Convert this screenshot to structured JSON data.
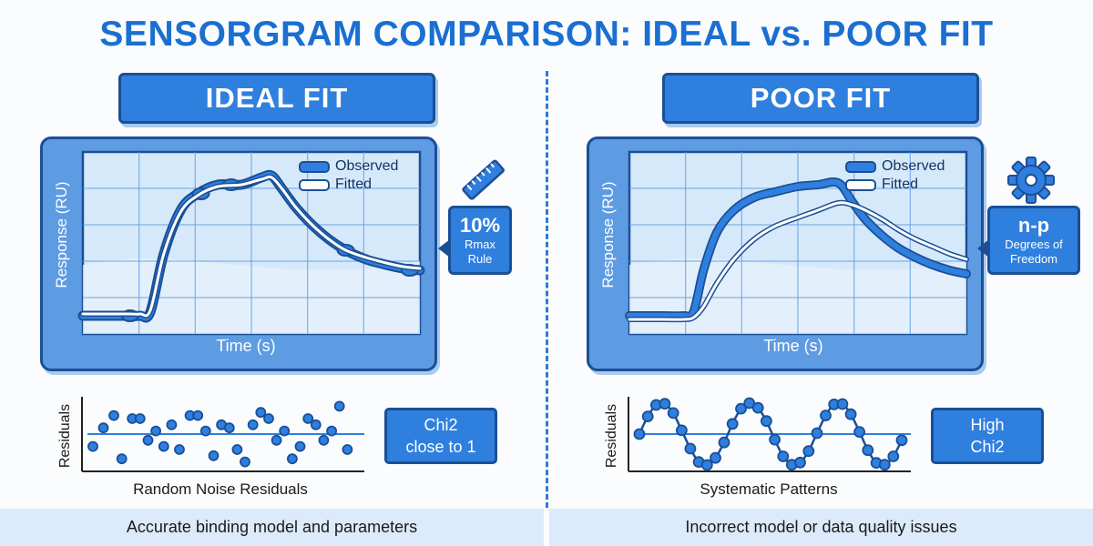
{
  "title": "SENSORGRAM COMPARISON: IDEAL vs. POOR FIT",
  "colors": {
    "accent": "#2f7fde",
    "dark": "#1b4f95",
    "plot_bg": "#d6e9fa",
    "frame": "#5d9be3",
    "footer_bg": "#dcebfb"
  },
  "ideal": {
    "header": "IDEAL FIT",
    "y_axis_label": "Response (RU)",
    "x_axis_label": "Time (s)",
    "legend": {
      "observed": "Observed",
      "fitted": "Fitted"
    },
    "icon": "ruler-icon",
    "callout": {
      "big": "10%",
      "line1": "Rmax",
      "line2": "Rule"
    },
    "residual_axis_label": "Residuals",
    "residual_caption": "Random Noise Residuals",
    "stat_line1": "Chi2",
    "stat_line2": "close to 1",
    "footer": "Accurate binding model and parameters"
  },
  "poor": {
    "header": "POOR FIT",
    "y_axis_label": "Response (RU)",
    "x_axis_label": "Time (s)",
    "legend": {
      "observed": "Observed",
      "fitted": "Fitted"
    },
    "icon": "gear-icon",
    "callout": {
      "big": "n-p",
      "line1": "Degrees of",
      "line2": "Freedom"
    },
    "residual_axis_label": "Residuals",
    "residual_caption": "Systematic Patterns",
    "stat_line1": "High",
    "stat_line2": "Chi2",
    "footer": "Incorrect model or data quality issues"
  },
  "chart_data": [
    {
      "type": "line",
      "title": "IDEAL FIT",
      "xlabel": "Time (s)",
      "ylabel": "Response (RU)",
      "xlim": [
        0,
        100
      ],
      "ylim": [
        0,
        100
      ],
      "grid": true,
      "legend": "top-right",
      "series": [
        {
          "name": "Observed",
          "x": [
            0,
            8,
            14,
            17,
            20,
            24,
            29,
            34,
            40,
            47,
            53,
            56,
            59,
            63,
            68,
            73,
            78,
            84,
            90,
            95,
            100
          ],
          "y": [
            10,
            10,
            10,
            10,
            12,
            44,
            68,
            77,
            82,
            82,
            86,
            87,
            80,
            70,
            60,
            52,
            46,
            41,
            38,
            36,
            35
          ]
        },
        {
          "name": "Fitted",
          "x": [
            0,
            8,
            14,
            17,
            20,
            24,
            29,
            34,
            40,
            47,
            53,
            56,
            59,
            63,
            68,
            73,
            78,
            84,
            90,
            95,
            100
          ],
          "y": [
            11,
            11,
            11,
            11,
            13,
            44,
            67,
            76,
            81,
            82,
            85,
            86,
            80,
            70,
            60,
            52,
            46,
            42,
            39,
            37,
            36
          ]
        }
      ]
    },
    {
      "type": "line",
      "title": "POOR FIT",
      "xlabel": "Time (s)",
      "ylabel": "Response (RU)",
      "xlim": [
        0,
        100
      ],
      "ylim": [
        0,
        100
      ],
      "grid": true,
      "legend": "top-right",
      "series": [
        {
          "name": "Observed",
          "x": [
            0,
            10,
            16,
            19,
            22,
            26,
            31,
            37,
            43,
            50,
            56,
            62,
            66,
            70,
            75,
            80,
            85,
            90,
            95,
            100
          ],
          "y": [
            10,
            10,
            10,
            12,
            35,
            56,
            68,
            75,
            78,
            81,
            82,
            83,
            73,
            63,
            54,
            47,
            42,
            38,
            35,
            33
          ]
        },
        {
          "name": "Fitted",
          "x": [
            0,
            10,
            16,
            19,
            22,
            26,
            31,
            37,
            43,
            50,
            56,
            62,
            66,
            70,
            75,
            80,
            85,
            90,
            95,
            100
          ],
          "y": [
            8,
            8,
            8,
            9,
            15,
            28,
            41,
            52,
            59,
            64,
            68,
            72,
            71,
            68,
            63,
            57,
            52,
            48,
            44,
            41
          ]
        }
      ]
    },
    {
      "type": "scatter",
      "title": "Random Noise Residuals",
      "ylabel": "Residuals",
      "ylim": [
        -1,
        1
      ],
      "series": [
        {
          "name": "Residuals",
          "x": [
            0,
            4,
            8,
            11,
            15,
            18,
            21,
            24,
            27,
            30,
            33,
            37,
            40,
            43,
            46,
            49,
            52,
            55,
            58,
            61,
            64,
            67,
            70,
            73,
            76,
            79,
            82,
            85,
            88,
            91,
            94,
            97
          ],
          "y": [
            -0.4,
            0.2,
            0.6,
            -0.8,
            0.5,
            0.5,
            -0.2,
            0.1,
            -0.4,
            0.3,
            -0.5,
            0.6,
            0.6,
            0.1,
            -0.7,
            0.3,
            0.2,
            -0.5,
            -0.9,
            0.3,
            0.7,
            0.5,
            -0.2,
            0.1,
            -0.8,
            -0.4,
            0.5,
            0.3,
            -0.2,
            0.1,
            0.9,
            -0.5
          ]
        }
      ]
    },
    {
      "type": "scatter",
      "title": "Systematic Patterns",
      "ylabel": "Residuals",
      "ylim": [
        -1,
        1
      ],
      "series": [
        {
          "name": "Residuals",
          "x": [
            0,
            3.2,
            6.4,
            9.7,
            12.9,
            16.1,
            19.4,
            22.6,
            25.8,
            29,
            32.3,
            35.5,
            38.7,
            41.9,
            45.2,
            48.4,
            51.6,
            54.8,
            58.1,
            61.3,
            64.5,
            67.7,
            71,
            74.2,
            77.4,
            80.6,
            83.9,
            87.1,
            90.3,
            93.5,
            96.8,
            100
          ],
          "y": [
            0,
            0.57,
            0.94,
            0.98,
            0.68,
            0.12,
            -0.47,
            -0.9,
            -1,
            -0.77,
            -0.27,
            0.33,
            0.82,
            1,
            0.85,
            0.42,
            -0.18,
            -0.72,
            -0.99,
            -0.92,
            -0.55,
            0.03,
            0.6,
            0.96,
            0.97,
            0.64,
            0.07,
            -0.52,
            -0.93,
            -0.99,
            -0.72,
            -0.2
          ]
        }
      ]
    }
  ]
}
